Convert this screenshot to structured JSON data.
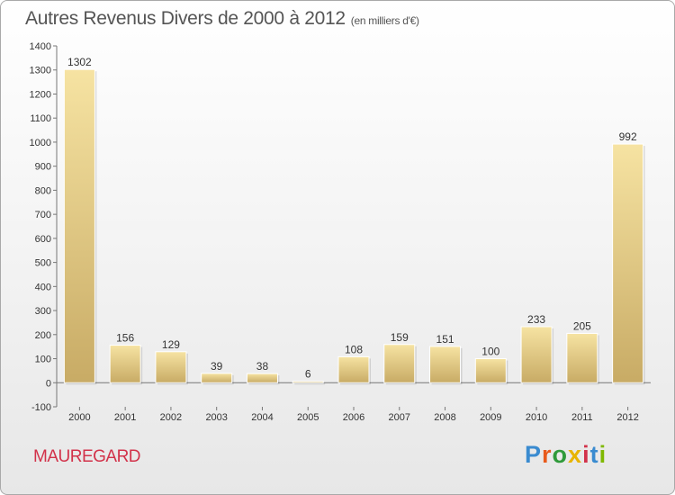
{
  "title": "Autres Revenus Divers de 2000 à 2012",
  "subtitle": "(en milliers d'€)",
  "commune": "MAUREGARD",
  "logo": {
    "text": "Proxiti",
    "letter_colors": [
      "#3a8bd0",
      "#e85a1b",
      "#2f9a3a",
      "#e8b400",
      "#d2324a",
      "#3a8bd0",
      "#7fb800"
    ]
  },
  "chart_data": {
    "type": "bar",
    "categories": [
      "2000",
      "2001",
      "2002",
      "2003",
      "2004",
      "2005",
      "2006",
      "2007",
      "2008",
      "2009",
      "2010",
      "2011",
      "2012"
    ],
    "values": [
      1302,
      156,
      129,
      39,
      38,
      6,
      108,
      159,
      151,
      100,
      233,
      205,
      992
    ],
    "ylim": [
      -100,
      1400
    ],
    "yticks": [
      -100,
      0,
      100,
      200,
      300,
      400,
      500,
      600,
      700,
      800,
      900,
      1000,
      1100,
      1200,
      1300,
      1400
    ],
    "grid": false,
    "bar_color": "#e8cc7e"
  }
}
